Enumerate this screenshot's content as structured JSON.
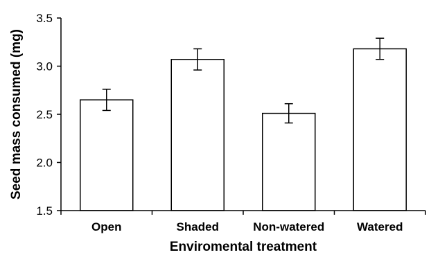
{
  "chart_data": {
    "type": "bar",
    "title": "",
    "xlabel": "Enviromental treatment",
    "ylabel": "Seed mass consumed (mg)",
    "categories": [
      "Open",
      "Shaded",
      "Non-watered",
      "Watered"
    ],
    "values": [
      2.65,
      3.07,
      2.51,
      3.18
    ],
    "error": [
      0.11,
      0.11,
      0.1,
      0.11
    ],
    "ylim": [
      1.5,
      3.5
    ],
    "yticks": [
      1.5,
      2.0,
      2.5,
      3.0,
      3.5
    ],
    "ytick_labels": [
      "1.5",
      "2.0",
      "2.5",
      "3.0",
      "3.5"
    ],
    "grid": false,
    "bar_fill": "#ffffff",
    "bar_stroke": "#000000"
  }
}
